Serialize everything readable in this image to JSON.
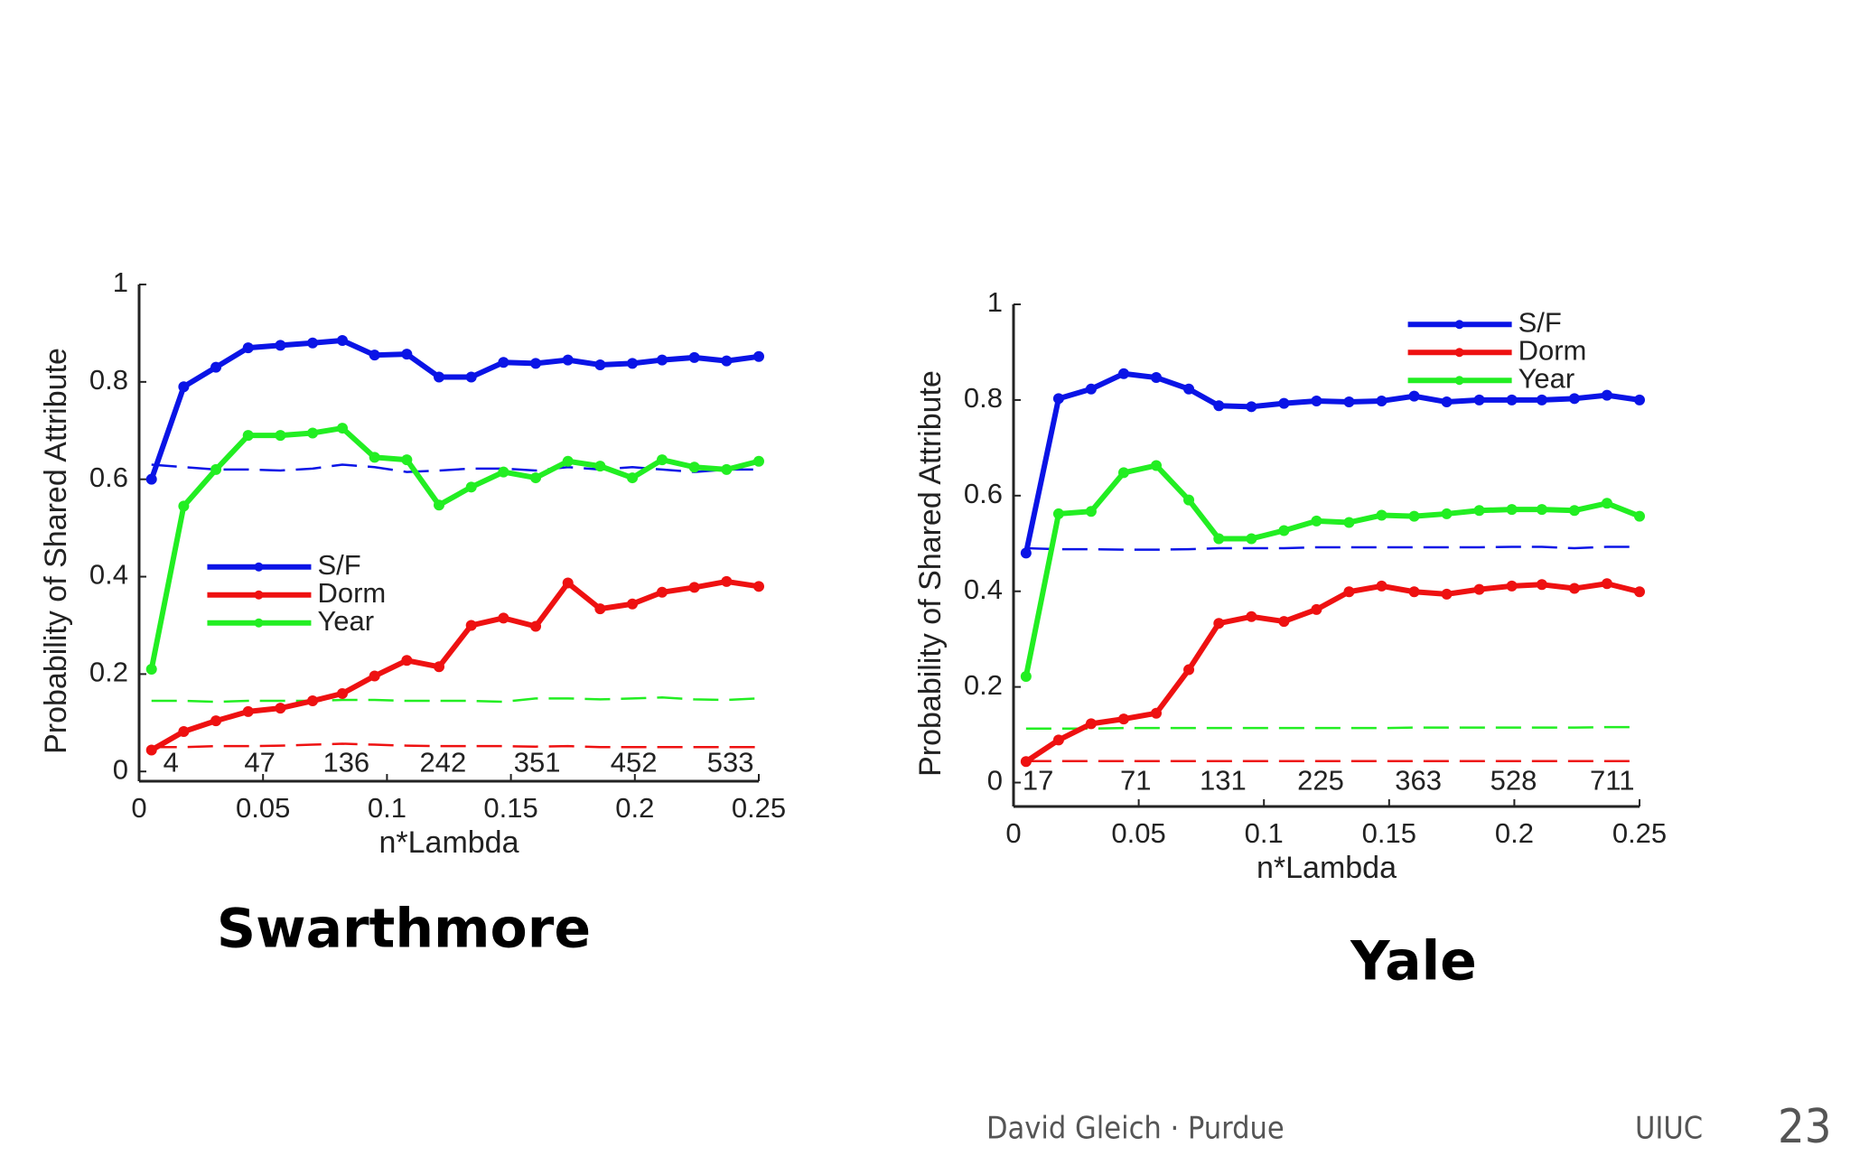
{
  "chart_data": [
    {
      "type": "line",
      "title": "Swarthmore",
      "xlabel": "n*Lambda",
      "ylabel": "Probability of Shared Attribute",
      "x": [
        0.005,
        0.018,
        0.031,
        0.044,
        0.057,
        0.07,
        0.082,
        0.095,
        0.108,
        0.121,
        0.134,
        0.147,
        0.16,
        0.173,
        0.186,
        0.199,
        0.211,
        0.224,
        0.237,
        0.25
      ],
      "xlim": [
        0,
        0.25
      ],
      "xticks": [
        0,
        0.05,
        0.1,
        0.15,
        0.2,
        0.25
      ],
      "ylim": [
        -0.02,
        1
      ],
      "yticks": [
        0,
        0.2,
        0.4,
        0.6,
        0.8,
        1
      ],
      "legend": "center left",
      "series": [
        {
          "name": "S/F",
          "color": "#0a14e6",
          "values": [
            0.6,
            0.79,
            0.83,
            0.87,
            0.875,
            0.88,
            0.885,
            0.855,
            0.857,
            0.81,
            0.81,
            0.84,
            0.838,
            0.845,
            0.835,
            0.838,
            0.845,
            0.85,
            0.843,
            0.852
          ]
        },
        {
          "name": "Dorm",
          "color": "#ee1111",
          "values": [
            0.044,
            0.082,
            0.104,
            0.123,
            0.13,
            0.145,
            0.16,
            0.196,
            0.228,
            0.215,
            0.3,
            0.315,
            0.298,
            0.387,
            0.334,
            0.344,
            0.368,
            0.378,
            0.39,
            0.38
          ]
        },
        {
          "name": "Year",
          "color": "#22ee22",
          "values": [
            0.21,
            0.545,
            0.62,
            0.69,
            0.69,
            0.695,
            0.705,
            0.645,
            0.64,
            0.547,
            0.584,
            0.615,
            0.603,
            0.637,
            0.627,
            0.603,
            0.64,
            0.625,
            0.62,
            0.637
          ]
        },
        {
          "color": "#0a14e6",
          "linestyle": "dashed",
          "values": [
            0.63,
            0.625,
            0.62,
            0.62,
            0.618,
            0.622,
            0.63,
            0.625,
            0.615,
            0.618,
            0.622,
            0.622,
            0.618,
            0.625,
            0.62,
            0.625,
            0.62,
            0.615,
            0.62,
            0.62
          ]
        },
        {
          "color": "#ee1111",
          "linestyle": "dashed",
          "values": [
            0.05,
            0.05,
            0.052,
            0.052,
            0.053,
            0.055,
            0.057,
            0.055,
            0.053,
            0.052,
            0.052,
            0.052,
            0.051,
            0.052,
            0.05,
            0.05,
            0.05,
            0.05,
            0.05,
            0.05
          ]
        },
        {
          "color": "#22ee22",
          "linestyle": "dashed",
          "values": [
            0.145,
            0.145,
            0.143,
            0.145,
            0.145,
            0.145,
            0.147,
            0.147,
            0.145,
            0.145,
            0.145,
            0.143,
            0.15,
            0.15,
            0.148,
            0.15,
            0.152,
            0.148,
            0.147,
            0.15
          ]
        }
      ],
      "annotations": [
        {
          "text": "4",
          "x": 0.016,
          "y": 0.015
        },
        {
          "text": "47",
          "x": 0.055,
          "y": 0.015
        },
        {
          "text": "136",
          "x": 0.093,
          "y": 0.015
        },
        {
          "text": "242",
          "x": 0.132,
          "y": 0.015
        },
        {
          "text": "351",
          "x": 0.17,
          "y": 0.015
        },
        {
          "text": "452",
          "x": 0.209,
          "y": 0.015
        },
        {
          "text": "533",
          "x": 0.248,
          "y": 0.015
        }
      ]
    },
    {
      "type": "line",
      "title": "Yale",
      "xlabel": "n*Lambda",
      "ylabel": "Probability of Shared Attribute",
      "x": [
        0.005,
        0.018,
        0.031,
        0.044,
        0.057,
        0.07,
        0.082,
        0.095,
        0.108,
        0.121,
        0.134,
        0.147,
        0.16,
        0.173,
        0.186,
        0.199,
        0.211,
        0.224,
        0.237,
        0.25
      ],
      "xlim": [
        0,
        0.25
      ],
      "xticks": [
        0,
        0.05,
        0.1,
        0.15,
        0.2,
        0.25
      ],
      "ylim": [
        -0.05,
        1
      ],
      "yticks": [
        0,
        0.2,
        0.4,
        0.6,
        0.8,
        1
      ],
      "legend": "upper right",
      "series": [
        {
          "name": "S/F",
          "color": "#0a14e6",
          "values": [
            0.48,
            0.803,
            0.823,
            0.855,
            0.847,
            0.823,
            0.788,
            0.786,
            0.793,
            0.798,
            0.796,
            0.798,
            0.808,
            0.796,
            0.8,
            0.8,
            0.8,
            0.803,
            0.81,
            0.8
          ]
        },
        {
          "name": "Dorm",
          "color": "#ee1111",
          "values": [
            0.044,
            0.089,
            0.123,
            0.133,
            0.145,
            0.236,
            0.333,
            0.347,
            0.337,
            0.362,
            0.399,
            0.411,
            0.399,
            0.394,
            0.404,
            0.411,
            0.414,
            0.406,
            0.416,
            0.399
          ]
        },
        {
          "name": "Year",
          "color": "#22ee22",
          "values": [
            0.222,
            0.562,
            0.567,
            0.648,
            0.663,
            0.591,
            0.51,
            0.51,
            0.527,
            0.547,
            0.544,
            0.559,
            0.557,
            0.562,
            0.569,
            0.571,
            0.571,
            0.569,
            0.584,
            0.557
          ]
        },
        {
          "color": "#0a14e6",
          "linestyle": "dashed",
          "values": [
            0.49,
            0.488,
            0.488,
            0.487,
            0.487,
            0.488,
            0.49,
            0.49,
            0.49,
            0.492,
            0.492,
            0.492,
            0.492,
            0.492,
            0.492,
            0.493,
            0.493,
            0.49,
            0.493,
            0.493
          ]
        },
        {
          "color": "#ee1111",
          "linestyle": "dashed",
          "values": [
            0.045,
            0.045,
            0.045,
            0.045,
            0.045,
            0.045,
            0.045,
            0.045,
            0.045,
            0.045,
            0.045,
            0.045,
            0.045,
            0.045,
            0.045,
            0.045,
            0.045,
            0.045,
            0.045,
            0.045
          ]
        },
        {
          "color": "#22ee22",
          "linestyle": "dashed",
          "values": [
            0.113,
            0.113,
            0.113,
            0.114,
            0.114,
            0.114,
            0.114,
            0.114,
            0.114,
            0.114,
            0.114,
            0.114,
            0.115,
            0.115,
            0.115,
            0.115,
            0.115,
            0.115,
            0.116,
            0.116
          ]
        }
      ],
      "annotations": [
        {
          "text": "17",
          "x": 0.016,
          "y": 0
        },
        {
          "text": "71",
          "x": 0.055,
          "y": 0
        },
        {
          "text": "131",
          "x": 0.093,
          "y": 0
        },
        {
          "text": "225",
          "x": 0.132,
          "y": 0
        },
        {
          "text": "363",
          "x": 0.171,
          "y": 0
        },
        {
          "text": "528",
          "x": 0.209,
          "y": 0
        },
        {
          "text": "711",
          "x": 0.248,
          "y": 0
        }
      ]
    }
  ],
  "footer": {
    "author": "David Gleich · Purdue",
    "venue": "UIUC",
    "page": "23"
  }
}
